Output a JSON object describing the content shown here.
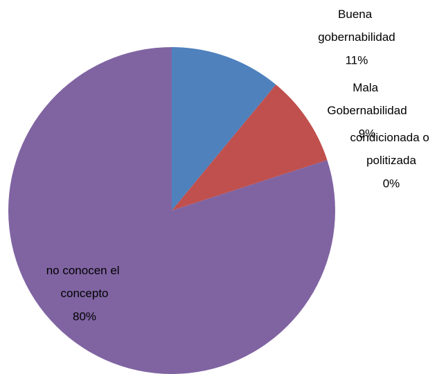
{
  "chart_data": {
    "type": "pie",
    "categories": [
      "Buena gobernabilidad",
      "Mala Gobernabilidad",
      "condicionada o politizada",
      "no conocen el concepto"
    ],
    "values": [
      11,
      9,
      0,
      80
    ],
    "value_labels": [
      "11%",
      "9%",
      "0%",
      "80%"
    ],
    "colors": [
      "#4f81bd",
      "#c0504d",
      "#9bbb59",
      "#8064a2"
    ]
  }
}
